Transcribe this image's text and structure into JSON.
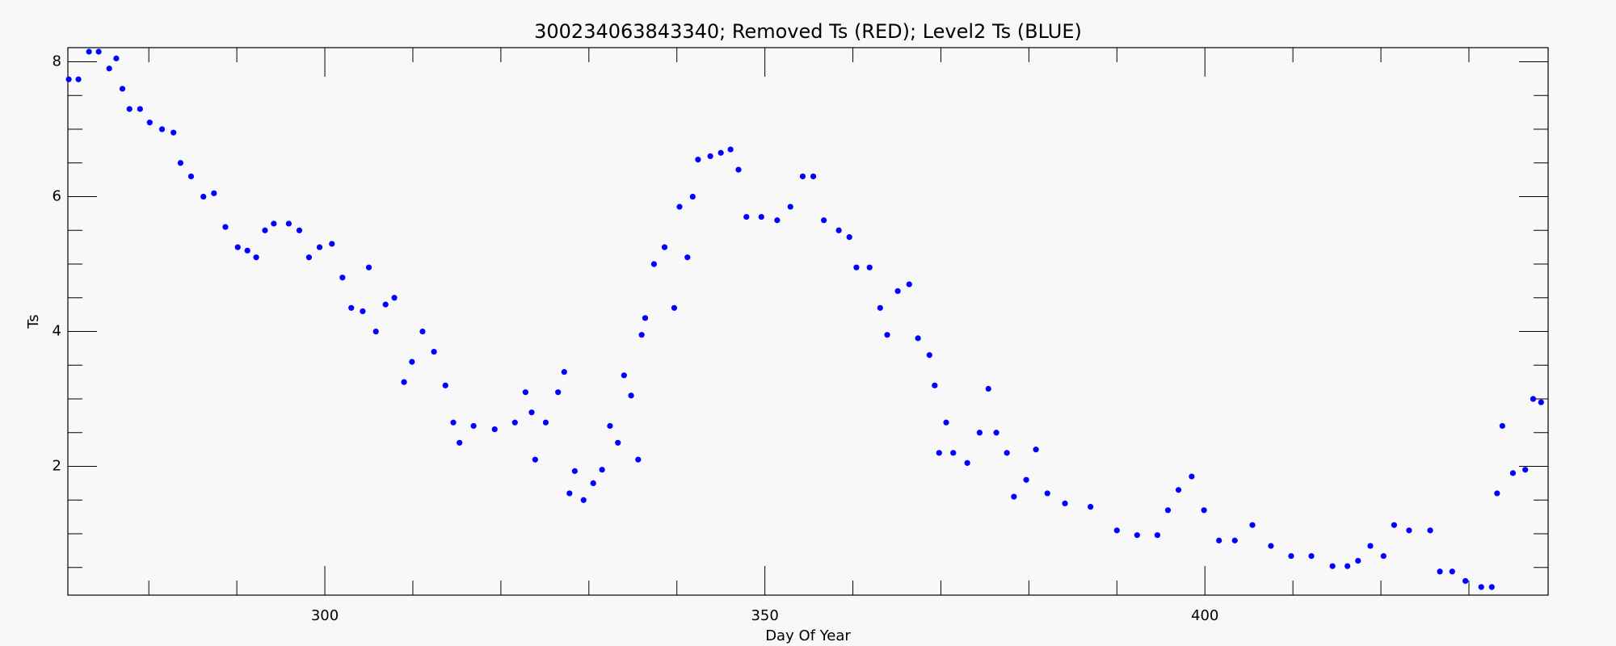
{
  "chart_data": {
    "type": "scatter",
    "title": "300234063843340; Removed Ts (RED); Level2 Ts (BLUE)",
    "xlabel": "Day Of Year",
    "ylabel": "Ts",
    "color": "#0000ff",
    "xlim": [
      270.8,
      439
    ],
    "ylim": [
      0.09,
      8.21
    ],
    "xticks": [
      300,
      350,
      400
    ],
    "yticks": [
      2,
      4,
      6,
      8
    ],
    "xminorticks": [
      280,
      290,
      310,
      320,
      330,
      340,
      360,
      370,
      380,
      390,
      410,
      420,
      430
    ],
    "yminorticks": [
      0.5,
      1,
      1.5,
      2.5,
      3,
      3.5,
      4.5,
      5,
      5.5,
      6.5,
      7,
      7.5
    ],
    "x": [
      270.9,
      272.0,
      273.2,
      274.3,
      275.5,
      276.3,
      277.0,
      277.8,
      279.0,
      280.1,
      281.5,
      282.8,
      283.6,
      284.8,
      286.2,
      287.4,
      288.7,
      290.1,
      291.2,
      292.2,
      293.2,
      294.2,
      295.9,
      297.1,
      298.2,
      299.4,
      300.8,
      302.0,
      303.0,
      304.3,
      305.0,
      305.8,
      306.9,
      307.9,
      309.0,
      309.9,
      311.1,
      312.4,
      313.7,
      314.6,
      315.3,
      316.9,
      319.3,
      321.6,
      322.8,
      323.5,
      323.9,
      325.1,
      326.5,
      327.2,
      327.8,
      328.4,
      329.4,
      330.5,
      331.5,
      332.4,
      333.3,
      334.0,
      334.8,
      335.6,
      336.0,
      336.4,
      337.4,
      338.6,
      339.7,
      340.3,
      341.2,
      341.8,
      342.4,
      343.8,
      345.0,
      346.1,
      347.0,
      347.9,
      349.6,
      351.4,
      352.9,
      354.3,
      355.5,
      356.7,
      358.4,
      359.6,
      360.4,
      361.9,
      363.1,
      363.9,
      365.1,
      366.4,
      367.4,
      368.7,
      369.3,
      369.8,
      370.6,
      371.4,
      373.0,
      374.4,
      375.4,
      376.3,
      377.5,
      378.3,
      379.7,
      380.8,
      382.1,
      384.1,
      387.0,
      390.0,
      392.3,
      394.6,
      395.8,
      397.0,
      398.5,
      399.9,
      401.6,
      403.4,
      405.4,
      407.5,
      409.8,
      412.1,
      414.5,
      416.2,
      417.4,
      418.8,
      420.3,
      421.5,
      423.2,
      425.6,
      426.7,
      428.1,
      429.6,
      431.4,
      432.6,
      433.2,
      433.8,
      435.0,
      436.4,
      437.3,
      438.2
    ],
    "values": [
      7.74,
      7.74,
      8.15,
      8.15,
      7.9,
      8.05,
      7.6,
      7.3,
      7.3,
      7.1,
      7.0,
      6.95,
      6.5,
      6.3,
      6.0,
      6.05,
      5.55,
      5.25,
      5.2,
      5.1,
      5.5,
      5.6,
      5.6,
      5.5,
      5.1,
      5.25,
      5.3,
      4.8,
      4.35,
      4.3,
      4.95,
      4.0,
      4.4,
      4.5,
      3.25,
      3.55,
      4.0,
      3.7,
      3.2,
      2.65,
      2.35,
      2.6,
      2.55,
      2.65,
      3.1,
      2.8,
      2.1,
      2.65,
      3.1,
      3.4,
      1.6,
      1.93,
      1.5,
      1.75,
      1.95,
      2.6,
      2.35,
      3.35,
      3.05,
      2.1,
      3.95,
      4.2,
      5.0,
      5.25,
      4.35,
      5.85,
      5.1,
      6.0,
      6.55,
      6.6,
      6.65,
      6.7,
      6.4,
      5.7,
      5.7,
      5.65,
      5.85,
      6.3,
      6.3,
      5.65,
      5.5,
      5.4,
      4.95,
      4.95,
      4.35,
      3.95,
      4.6,
      4.7,
      3.9,
      3.65,
      3.2,
      2.2,
      2.65,
      2.2,
      2.05,
      2.5,
      3.15,
      2.5,
      2.2,
      1.55,
      1.8,
      2.25,
      1.6,
      1.45,
      1.4,
      1.05,
      0.98,
      0.98,
      1.35,
      1.65,
      1.85,
      1.35,
      0.9,
      0.9,
      1.13,
      0.82,
      0.67,
      0.67,
      0.52,
      0.52,
      0.6,
      0.82,
      0.67,
      1.13,
      1.05,
      1.05,
      0.44,
      0.44,
      0.3,
      0.21,
      0.21,
      1.6,
      2.6,
      1.9,
      1.95,
      3.0,
      2.95
    ]
  }
}
